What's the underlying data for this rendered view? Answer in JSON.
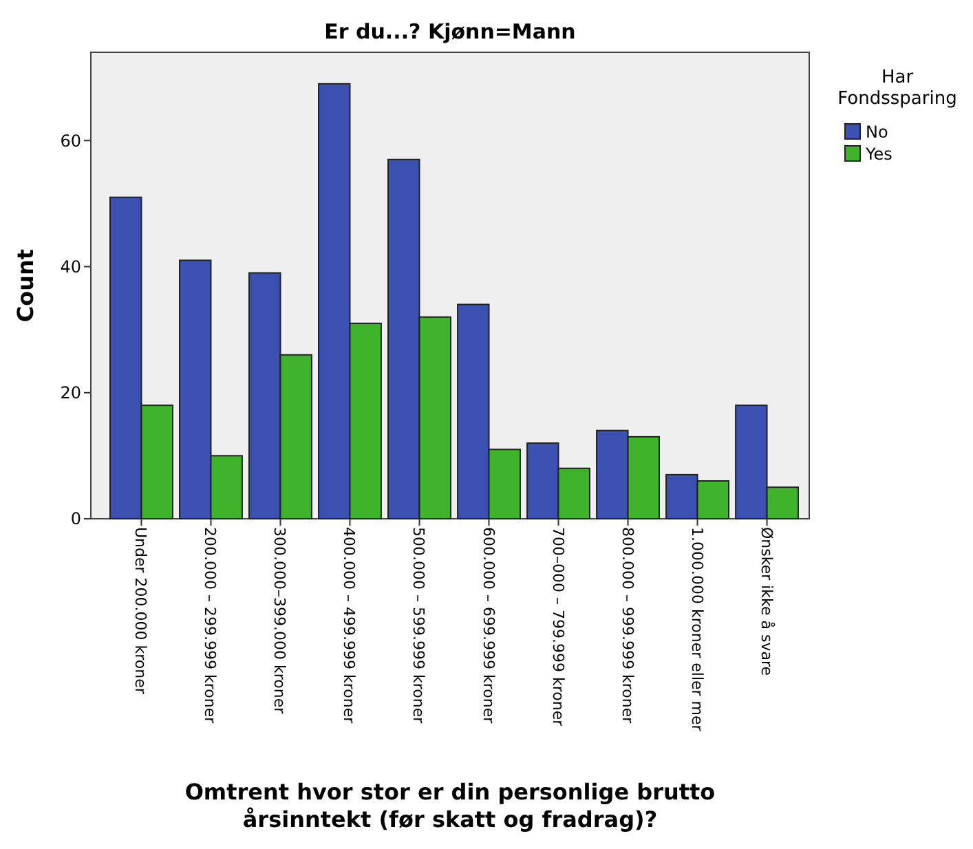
{
  "chart_data": {
    "type": "bar",
    "title": "Er du...? Kjønn=Mann",
    "xlabel": "Omtrent hvor stor er din personlige brutto årsinntekt (før skatt og fradrag)?",
    "ylabel": "Count",
    "legend_title": "Har Fondssparing",
    "legend": "top right",
    "categories": [
      "Under 200.000 kroner",
      "200.000 – 299.999 kroner",
      "300.000–399.000 kroner",
      "400.000 – 499.999 kroner",
      "500.000 – 599.999 kroner",
      "600.000 – 699.999 kroner",
      "700–000 – 799.999 kroner",
      "800.000 – 999.999 kroner",
      "1.000.000 kroner eller mer",
      "Ønsker ikke å svare"
    ],
    "series": [
      {
        "name": "No",
        "color": "#3b50b0",
        "values": [
          51,
          41,
          39,
          69,
          57,
          34,
          12,
          14,
          7,
          18
        ]
      },
      {
        "name": "Yes",
        "color": "#3fb32c",
        "values": [
          18,
          10,
          26,
          31,
          32,
          11,
          8,
          13,
          6,
          5
        ]
      }
    ],
    "ylim": [
      0,
      74
    ],
    "yticks": [
      0,
      20,
      40,
      60
    ]
  }
}
